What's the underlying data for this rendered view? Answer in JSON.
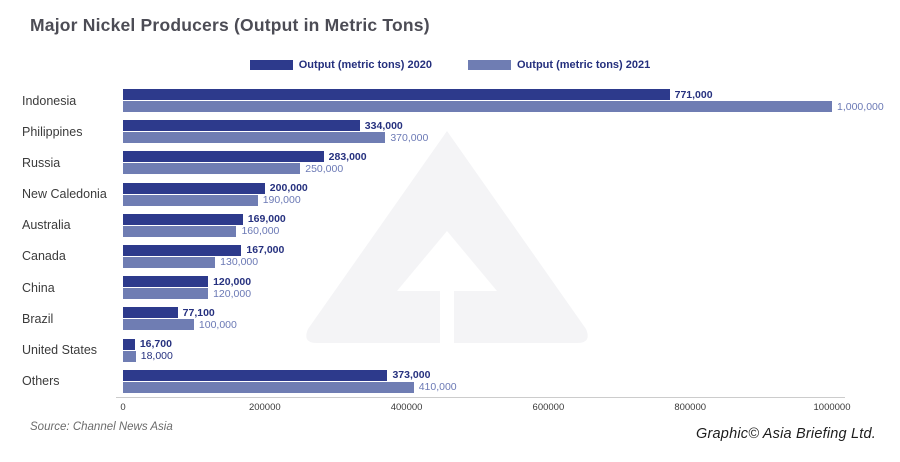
{
  "header": {
    "title": "Major Nickel Producers (Output in Metric Tons)"
  },
  "footer": {
    "source": "Source: Channel News Asia",
    "credit": "Graphic© Asia Briefing Ltd."
  },
  "colors": {
    "series_2020": "#2d3a8c",
    "series_2021": "#6f7db3",
    "label_2020": "#26317f",
    "label_2021": "#6b79b5",
    "watermark": "#f4f4f6",
    "axis_line": "#cccccc"
  },
  "chart_data": {
    "type": "bar",
    "orientation": "horizontal",
    "title": "Major Nickel Producers (Output in Metric Tons)",
    "categories": [
      "Indonesia",
      "Philippines",
      "Russia",
      "New Caledonia",
      "Australia",
      "Canada",
      "China",
      "Brazil",
      "United States",
      "Others"
    ],
    "series": [
      {
        "name": "Output (metric tons) 2020",
        "color": "#2d3a8c",
        "label_color": "#26317f",
        "values": [
          771000,
          334000,
          283000,
          200000,
          169000,
          167000,
          120000,
          77100,
          16700,
          373000
        ],
        "display_values": [
          "771,000",
          "334,000",
          "283,000",
          "200,000",
          "169,000",
          "167,000",
          "120,000",
          "77,100",
          "16,700",
          "373,000"
        ]
      },
      {
        "name": "Output (metric tons) 2021",
        "color": "#6f7db3",
        "label_color": "#6b79b5",
        "values": [
          1000000,
          370000,
          250000,
          190000,
          160000,
          130000,
          120000,
          100000,
          18000,
          410000
        ],
        "display_values": [
          "1,000,000",
          "370,000",
          "250,000",
          "190,000",
          "160,000",
          "130,000",
          "120,000",
          "100,000",
          "18,000",
          "410,000"
        ]
      }
    ],
    "label_color_overrides": [
      {
        "series": 1,
        "index": 8,
        "color": "#26317f"
      }
    ],
    "xlim": [
      0,
      1000000
    ],
    "x_ticks": [
      "0",
      "200000",
      "400000",
      "600000",
      "800000",
      "1000000"
    ],
    "grid": false,
    "legend_position": "top-center"
  }
}
